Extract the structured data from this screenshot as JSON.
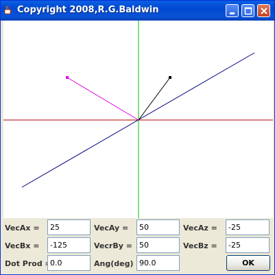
{
  "window": {
    "title": "Copyright  2008,R.G.Baldwin",
    "titlebar_color": "#0a5fe3"
  },
  "controls": {
    "minimize_icon": "minimize-icon",
    "maximize_icon": "maximize-icon",
    "close_icon": "close-icon"
  },
  "plot": {
    "x_axis_color": "#b00000",
    "y_axis_color": "#00c000",
    "vector_a_color": "#000000",
    "vector_b_color": "#e000e0",
    "vector_c_color": "#000080"
  },
  "fields": {
    "vecAx": {
      "label": "VecAx =",
      "value": "25"
    },
    "vecAy": {
      "label": "VecAy =",
      "value": "50"
    },
    "vecAz": {
      "label": "VecAz =",
      "value": "-25"
    },
    "vecBx": {
      "label": "VecBx =",
      "value": "-125"
    },
    "vecrBy": {
      "label": "VecrBy =",
      "value": "50"
    },
    "vecBz": {
      "label": "VecBz =",
      "value": "-25"
    },
    "dotProd": {
      "label": "Dot Prod =",
      "value": "0.0"
    },
    "angDeg": {
      "label": "Ang(deg)",
      "value": "90.0"
    }
  },
  "ok_label": "OK"
}
